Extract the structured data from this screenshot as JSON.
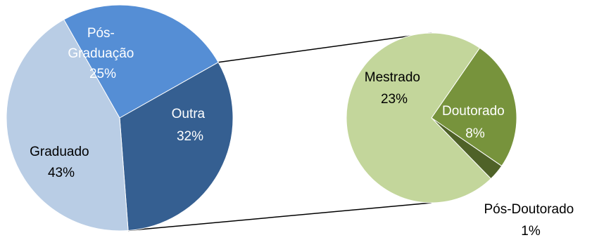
{
  "chart_data": {
    "type": "pie",
    "main_pie": {
      "slices": [
        {
          "label": "Outra",
          "value": 32,
          "value_label": "32%",
          "color": "#355F91",
          "text_color": "#FFFFFF"
        },
        {
          "label": "Graduado",
          "value": 43,
          "value_label": "43%",
          "color": "#B9CDE5",
          "text_color": "#000000"
        },
        {
          "label": "Pós-Graduação",
          "label_lines": [
            "Pós-",
            "Graduação"
          ],
          "value": 25,
          "value_label": "25%",
          "color": "#558ED5",
          "text_color": "#FFFFFF"
        }
      ]
    },
    "secondary_pie": {
      "expands": "Outra",
      "slices": [
        {
          "label": "Doutorado",
          "value": 8,
          "value_label": "8%",
          "color": "#77933C",
          "text_color": "#FFFFFF"
        },
        {
          "label": "Pós-Doutorado",
          "value": 1,
          "value_label": "1%",
          "color": "#4F6228",
          "text_color": "#000000"
        },
        {
          "label": "Mestrado",
          "value": 23,
          "value_label": "23%",
          "color": "#C3D69B",
          "text_color": "#000000"
        }
      ]
    }
  }
}
